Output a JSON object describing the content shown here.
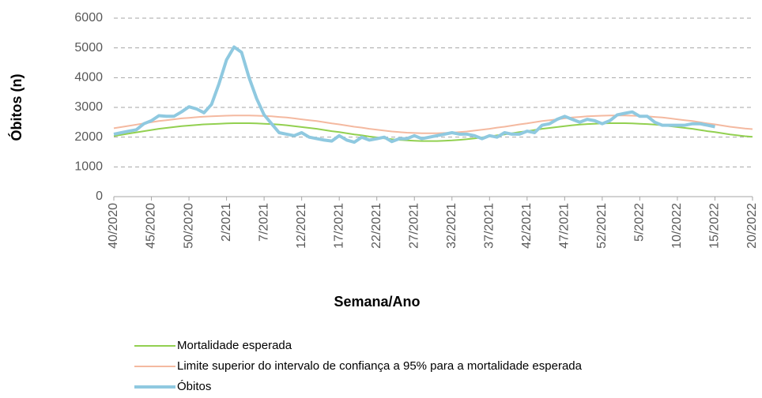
{
  "chart_data": {
    "type": "line",
    "x_label": "Semana/Ano",
    "y_label": "Óbitos (n)",
    "categories": [
      "40/2020",
      null,
      null,
      null,
      null,
      "45/2020",
      null,
      null,
      null,
      null,
      "50/2020",
      null,
      null,
      null,
      null,
      "2/2021",
      null,
      null,
      null,
      null,
      "7/2021",
      null,
      null,
      null,
      null,
      "12/2021",
      null,
      null,
      null,
      null,
      "17/2021",
      null,
      null,
      null,
      null,
      "22/2021",
      null,
      null,
      null,
      null,
      "27/2021",
      null,
      null,
      null,
      null,
      "32/2021",
      null,
      null,
      null,
      null,
      "37/2021",
      null,
      null,
      null,
      null,
      "42/2021",
      null,
      null,
      null,
      null,
      "47/2021",
      null,
      null,
      null,
      null,
      "52/2021",
      null,
      null,
      null,
      null,
      "5/2022",
      null,
      null,
      null,
      null,
      "10/2022",
      null,
      null,
      null,
      null,
      "15/2022",
      null,
      null,
      null,
      null,
      "20/2022"
    ],
    "ylim": [
      0,
      6000
    ],
    "yticks": [
      0,
      1000,
      2000,
      3000,
      4000,
      5000,
      6000
    ],
    "grid": true,
    "series": [
      {
        "name": "Mortalidade esperada",
        "color": "#92d050",
        "width": 2,
        "values": [
          2040,
          2080,
          2120,
          2160,
          2200,
          2240,
          2280,
          2310,
          2340,
          2370,
          2390,
          2410,
          2430,
          2440,
          2450,
          2460,
          2470,
          2470,
          2470,
          2460,
          2450,
          2440,
          2420,
          2400,
          2370,
          2340,
          2310,
          2280,
          2240,
          2200,
          2170,
          2130,
          2090,
          2060,
          2020,
          1990,
          1960,
          1930,
          1910,
          1890,
          1880,
          1870,
          1870,
          1870,
          1880,
          1890,
          1910,
          1930,
          1960,
          1990,
          2020,
          2060,
          2090,
          2130,
          2170,
          2200,
          2240,
          2280,
          2310,
          2340,
          2370,
          2400,
          2420,
          2440,
          2450,
          2460,
          2470,
          2470,
          2470,
          2460,
          2450,
          2440,
          2420,
          2400,
          2370,
          2340,
          2310,
          2280,
          2240,
          2200,
          2170,
          2130,
          2090,
          2060,
          2030,
          2010
        ]
      },
      {
        "name": "Limite superior do intervalo de confiança a 95% para a mortalidade esperada",
        "color": "#f4b9a0",
        "width": 2,
        "values": [
          2300,
          2340,
          2380,
          2420,
          2460,
          2500,
          2540,
          2570,
          2600,
          2630,
          2650,
          2670,
          2690,
          2700,
          2710,
          2720,
          2730,
          2730,
          2730,
          2720,
          2710,
          2700,
          2680,
          2660,
          2630,
          2600,
          2570,
          2540,
          2500,
          2460,
          2430,
          2390,
          2350,
          2320,
          2280,
          2250,
          2220,
          2190,
          2170,
          2150,
          2140,
          2130,
          2130,
          2130,
          2140,
          2150,
          2170,
          2190,
          2220,
          2250,
          2280,
          2320,
          2350,
          2390,
          2430,
          2460,
          2500,
          2540,
          2570,
          2600,
          2630,
          2660,
          2680,
          2700,
          2710,
          2720,
          2730,
          2730,
          2730,
          2720,
          2710,
          2700,
          2680,
          2660,
          2630,
          2600,
          2570,
          2540,
          2500,
          2460,
          2430,
          2390,
          2350,
          2320,
          2290,
          2270
        ]
      },
      {
        "name": "Óbitos",
        "color": "#8fc9e0",
        "width": 4,
        "values": [
          2100,
          2150,
          2200,
          2250,
          2450,
          2550,
          2720,
          2700,
          2700,
          2850,
          3020,
          2950,
          2820,
          3100,
          3800,
          4600,
          5030,
          4850,
          4000,
          3300,
          2750,
          2450,
          2150,
          2100,
          2050,
          2150,
          2000,
          1950,
          1900,
          1870,
          2050,
          1900,
          1830,
          2000,
          1900,
          1950,
          2000,
          1850,
          1950,
          1950,
          2050,
          1950,
          2000,
          2050,
          2100,
          2150,
          2100,
          2100,
          2050,
          1950,
          2050,
          2000,
          2150,
          2100,
          2100,
          2200,
          2150,
          2400,
          2450,
          2600,
          2700,
          2600,
          2500,
          2600,
          2550,
          2450,
          2550,
          2750,
          2800,
          2850,
          2700,
          2700,
          2500,
          2400,
          2400,
          2400,
          2400,
          2450,
          2450,
          2400,
          2350,
          null,
          null,
          null,
          null,
          null
        ]
      }
    ]
  }
}
